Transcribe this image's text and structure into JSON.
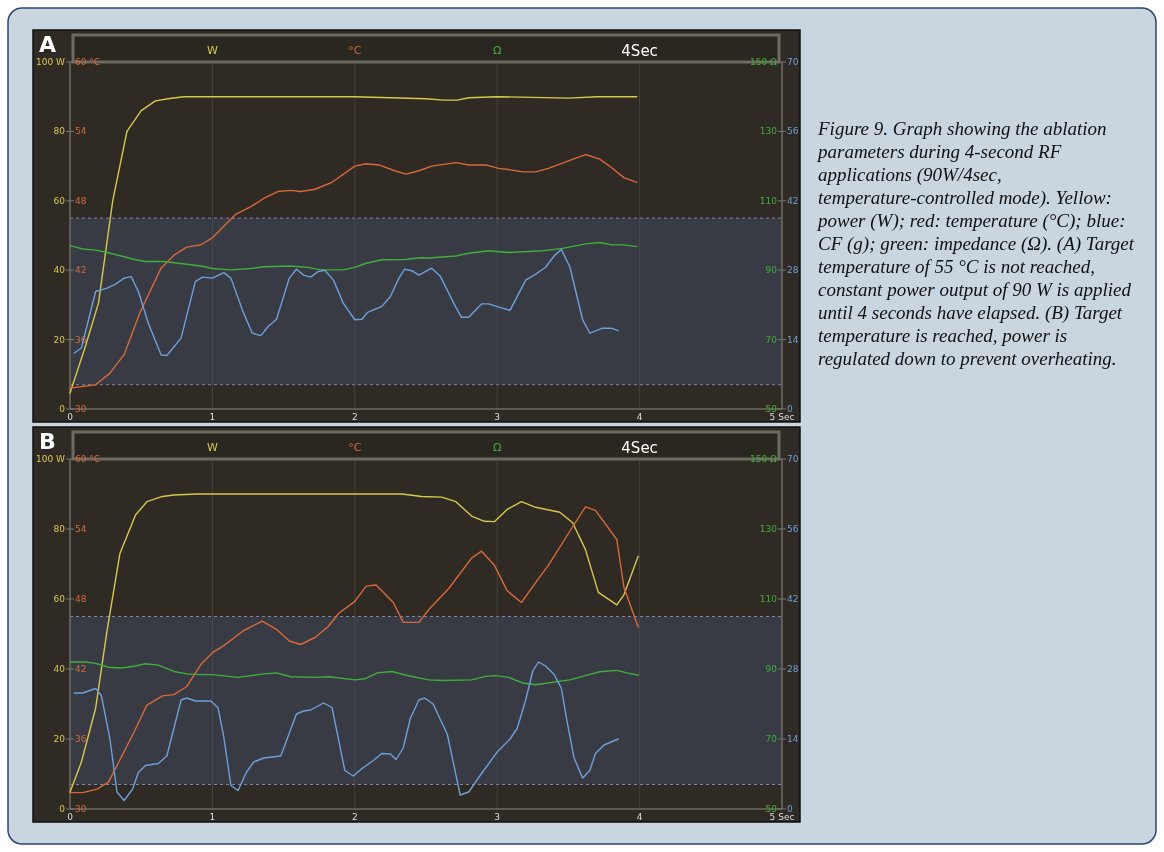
{
  "chart_data": [
    {
      "type": "line",
      "title": "A",
      "xlim": [
        0,
        5
      ],
      "xticks": [
        0,
        1,
        2,
        3,
        4,
        {
          "value": 5,
          "label": "5 Sec"
        }
      ],
      "ylim": [
        0,
        100
      ],
      "yticks": [
        0,
        20,
        40,
        60,
        80,
        {
          "value": 100,
          "label": "100 W"
        }
      ],
      "y3lim": [
        30,
        60
      ],
      "y3ticks": [
        30,
        36,
        42,
        48,
        54,
        {
          "value": 60,
          "label": "60 °C"
        }
      ],
      "y2lim": [
        50,
        150
      ],
      "y2ticks": [
        50,
        70,
        90,
        110,
        130,
        {
          "value": 150,
          "label": "150 Ω"
        }
      ],
      "grid": "x",
      "legend": "top",
      "bands": [
        {
          "axis": "y",
          "from": 7,
          "to": 55,
          "color": "#383b44"
        }
      ],
      "annotations": [
        "4Sec",
        "Figure 9. Graph showing the ablation parameters during 4-second RF applications (90W/4sec, temperature-controlled mode). Yellow: power (W); red: temperature (°C); blue: CF (g); green: impedance (Ω). (A) Target temperature of 55 °C is not reached, constant power output of 90 W is applied until 4 seconds have elapsed. (B) Target temperature is reached, power is regulated down to prevent overheating."
      ],
      "series": [
        {
          "name": "W",
          "color": "#d8c84a",
          "x": [
            0,
            0.1,
            0.2,
            0.3,
            0.4,
            0.5,
            0.6,
            0.7,
            0.8,
            1,
            1.5,
            2,
            2.5,
            2.62,
            2.72,
            2.8,
            3,
            3.5,
            3.7,
            3.98
          ],
          "values": [
            4.6,
            17,
            30.5,
            60,
            80,
            86,
            88.8,
            89.5,
            90,
            90,
            90,
            90,
            89.4,
            89,
            89,
            89.7,
            90,
            89.6,
            90,
            90
          ]
        },
        {
          "name": "°C",
          "color": "#d8683a",
          "axis": "y3",
          "x": [
            0,
            0.18,
            0.28,
            0.38,
            0.49,
            0.64,
            0.73,
            0.82,
            0.92,
            1,
            1.08,
            1.16,
            1.27,
            1.36,
            1.46,
            1.55,
            1.62,
            1.72,
            1.84,
            2,
            2.08,
            2.17,
            2.28,
            2.36,
            2.45,
            2.54,
            2.71,
            2.8,
            2.92,
            3.01,
            3.08,
            3.18,
            3.27,
            3.36,
            3.51,
            3.62,
            3.72,
            3.8,
            3.89,
            3.98
          ],
          "values": [
            31.8,
            32.1,
            33.1,
            34.7,
            38.3,
            42.2,
            43.3,
            44,
            44.2,
            44.8,
            45.8,
            46.8,
            47.5,
            48.2,
            48.8,
            48.9,
            48.8,
            49,
            49.6,
            51,
            51.2,
            51.1,
            50.6,
            50.3,
            50.6,
            51,
            51.3,
            51.1,
            51.1,
            50.8,
            50.7,
            50.5,
            50.5,
            50.8,
            51.5,
            52,
            51.6,
            50.9,
            50,
            49.6
          ]
        },
        {
          "name": "Ω",
          "color": "#3fae3a",
          "axis": "y2",
          "x": [
            0,
            0.09,
            0.18,
            0.26,
            0.36,
            0.46,
            0.53,
            0.66,
            0.82,
            0.92,
            1,
            1.13,
            1.27,
            1.36,
            1.55,
            1.67,
            1.76,
            1.92,
            2,
            2.08,
            2.19,
            2.35,
            2.46,
            2.52,
            2.71,
            2.8,
            2.94,
            3.08,
            3.32,
            3.46,
            3.62,
            3.72,
            3.81,
            3.89,
            3.98
          ],
          "values": [
            97.1,
            96.1,
            95.8,
            95.1,
            94.1,
            93,
            92.5,
            92.5,
            91.7,
            91.2,
            90.5,
            90.1,
            90.5,
            91,
            91.2,
            90.8,
            90.1,
            90.1,
            90.8,
            92,
            93,
            93.1,
            93.6,
            93.5,
            94.1,
            94.9,
            95.6,
            95.1,
            95.6,
            96.3,
            97.6,
            98,
            97.3,
            97.3,
            96.8
          ]
        }
      ]
    },
    {
      "type": "line",
      "xlim": [
        0,
        5
      ],
      "ylim": [
        0,
        70
      ],
      "yticks": [
        0,
        14,
        28,
        42,
        56,
        70
      ],
      "tick_labels": "y",
      "series": [
        {
          "color": "#6e9fd8",
          "x": [
            0.03,
            0.08,
            0.18,
            0.26,
            0.32,
            0.38,
            0.43,
            0.48,
            0.55,
            0.64,
            0.68,
            0.78,
            0.88,
            0.93,
            1,
            1.08,
            1.13,
            1.21,
            1.28,
            1.34,
            1.39,
            1.45,
            1.54,
            1.59,
            1.64,
            1.69,
            1.74,
            1.79,
            1.85,
            1.92,
            2,
            2.05,
            2.09,
            2.19,
            2.25,
            2.31,
            2.35,
            2.4,
            2.45,
            2.54,
            2.6,
            2.71,
            2.75,
            2.8,
            2.89,
            2.94,
            3.04,
            3.09,
            3.2,
            3.27,
            3.34,
            3.4,
            3.45,
            3.51,
            3.6,
            3.65,
            3.74,
            3.8,
            3.85
          ],
          "values": [
            11.3,
            12.3,
            23.7,
            24.4,
            25.2,
            26.4,
            26.7,
            23.7,
            17.3,
            10.9,
            10.8,
            14.3,
            25.7,
            26.6,
            26.4,
            27.5,
            26.4,
            20,
            15.3,
            14.8,
            16.6,
            18.1,
            26.4,
            28.2,
            27,
            26.6,
            27.7,
            28,
            26,
            21.3,
            18,
            18.1,
            19.5,
            20.7,
            22.7,
            26.4,
            28.2,
            27.9,
            27,
            28.4,
            26.8,
            20.5,
            18.5,
            18.5,
            21.2,
            21.2,
            20.3,
            19.9,
            26,
            27.2,
            28.6,
            30.9,
            32.2,
            28.7,
            18,
            15.3,
            16.3,
            16.3,
            15.8
          ]
        }
      ]
    },
    {
      "type": "line",
      "title": "B",
      "xlim": [
        0,
        5
      ],
      "xticks": [
        0,
        1,
        2,
        3,
        4,
        {
          "value": 5,
          "label": "5 Sec"
        }
      ],
      "ylim": [
        0,
        100
      ],
      "yticks": [
        0,
        20,
        40,
        60,
        80,
        {
          "value": 100,
          "label": "100 W"
        }
      ],
      "y3lim": [
        30,
        60
      ],
      "y3ticks": [
        30,
        36,
        42,
        48,
        54,
        {
          "value": 60,
          "label": "60 °C"
        }
      ],
      "y2lim": [
        50,
        150
      ],
      "y2ticks": [
        50,
        70,
        90,
        110,
        130,
        {
          "value": 150,
          "label": "150 Ω"
        }
      ],
      "grid": "x",
      "legend": "top",
      "bands": [
        {
          "axis": "y",
          "from": 7,
          "to": 55,
          "color": "#383b44"
        }
      ],
      "annotations": [
        "4Sec"
      ],
      "series": [
        {
          "name": "W",
          "color": "#d8c84a",
          "x": [
            0,
            0.08,
            0.18,
            0.26,
            0.35,
            0.46,
            0.54,
            0.65,
            0.73,
            0.89,
            1.5,
            2.2,
            2.33,
            2.47,
            2.61,
            2.71,
            2.82,
            2.91,
            2.98,
            3.07,
            3.17,
            3.27,
            3.44,
            3.53,
            3.62,
            3.71,
            3.84,
            3.89,
            3.99
          ],
          "values": [
            4.8,
            13.4,
            28.8,
            50.9,
            72.9,
            84,
            87.8,
            89.3,
            89.7,
            90,
            90,
            90,
            90,
            89.3,
            89.1,
            87.8,
            83.7,
            82.2,
            82.1,
            85.6,
            87.8,
            86.2,
            84.8,
            81.8,
            74.1,
            61.9,
            58.3,
            61.2,
            72.2
          ]
        },
        {
          "name": "°C",
          "color": "#d8683a",
          "axis": "y3",
          "x": [
            0,
            0.09,
            0.19,
            0.27,
            0.35,
            0.45,
            0.54,
            0.65,
            0.73,
            0.82,
            0.92,
            1,
            1.08,
            1.22,
            1.35,
            1.45,
            1.54,
            1.62,
            1.72,
            1.81,
            1.89,
            2,
            2.08,
            2.15,
            2.27,
            2.34,
            2.45,
            2.52,
            2.66,
            2.82,
            2.89,
            2.98,
            3.07,
            3.17,
            3.27,
            3.36,
            3.52,
            3.62,
            3.69,
            3.84,
            3.89,
            3.99
          ],
          "values": [
            31.4,
            31.4,
            31.7,
            32.3,
            34.2,
            36.6,
            38.9,
            39.7,
            39.8,
            40.5,
            42.4,
            43.4,
            44,
            45.3,
            46.1,
            45.4,
            44.4,
            44.1,
            44.7,
            45.6,
            46.8,
            47.8,
            49.1,
            49.2,
            47.7,
            46,
            46,
            47.1,
            48.9,
            51.5,
            52.1,
            50.9,
            48.7,
            47.7,
            49.4,
            50.9,
            54,
            55.9,
            55.6,
            53.1,
            49,
            45.6
          ]
        },
        {
          "name": "Ω",
          "color": "#3fae3a",
          "axis": "y2",
          "x": [
            0,
            0.11,
            0.18,
            0.27,
            0.36,
            0.45,
            0.53,
            0.62,
            0.73,
            0.82,
            0.92,
            1,
            1.18,
            1.36,
            1.45,
            1.55,
            1.72,
            1.82,
            2,
            2.07,
            2.16,
            2.26,
            2.36,
            2.52,
            2.61,
            2.82,
            2.92,
            2.99,
            3.08,
            3.18,
            3.27,
            3.51,
            3.6,
            3.72,
            3.84,
            3.91,
            3.99
          ],
          "values": [
            92,
            92,
            91.6,
            90.5,
            90.3,
            90.8,
            91.5,
            91.1,
            89.3,
            88.6,
            88.4,
            88.4,
            87.6,
            88.6,
            88.9,
            87.8,
            87.6,
            87.8,
            86.9,
            87.2,
            88.9,
            89.3,
            88.2,
            86.9,
            86.7,
            86.9,
            87.9,
            88.1,
            87.6,
            86,
            85.5,
            86.9,
            87.9,
            89.2,
            89.6,
            88.9,
            88.2
          ]
        }
      ]
    },
    {
      "type": "line",
      "xlim": [
        0,
        5
      ],
      "ylim": [
        0,
        70
      ],
      "yticks": [
        0,
        14,
        28,
        42,
        56,
        70
      ],
      "tick_labels": "y",
      "series": [
        {
          "color": "#6e9fd8",
          "x": [
            0.03,
            0.09,
            0.18,
            0.22,
            0.28,
            0.33,
            0.38,
            0.44,
            0.48,
            0.53,
            0.62,
            0.68,
            0.78,
            0.82,
            0.88,
            0.99,
            1.04,
            1.08,
            1.13,
            1.18,
            1.24,
            1.29,
            1.36,
            1.48,
            1.59,
            1.64,
            1.69,
            1.78,
            1.84,
            1.93,
            1.99,
            2.05,
            2.13,
            2.19,
            2.25,
            2.29,
            2.34,
            2.39,
            2.45,
            2.49,
            2.55,
            2.65,
            2.74,
            2.8,
            2.89,
            3,
            3.09,
            3.14,
            3.2,
            3.25,
            3.29,
            3.34,
            3.4,
            3.45,
            3.49,
            3.54,
            3.6,
            3.65,
            3.69,
            3.75,
            3.85
          ],
          "values": [
            23.2,
            23.2,
            24.1,
            22.7,
            14.1,
            3.4,
            1.7,
            4,
            7.3,
            8.7,
            9.1,
            10.6,
            21.8,
            22.2,
            21.6,
            21.6,
            20.2,
            14.4,
            4.7,
            3.7,
            7.4,
            9.4,
            10.2,
            10.6,
            19,
            19.6,
            19.8,
            21.2,
            20.3,
            7.7,
            6.6,
            8.1,
            9.7,
            11.1,
            11,
            9.9,
            12.2,
            18.1,
            21.8,
            22.2,
            21,
            14.9,
            2.8,
            3.4,
            7.1,
            11.4,
            14,
            16.1,
            21.8,
            27.6,
            29.4,
            28.6,
            26.9,
            24.2,
            17.6,
            10.2,
            6.2,
            7.7,
            11.1,
            12.8,
            14
          ]
        }
      ]
    }
  ]
}
